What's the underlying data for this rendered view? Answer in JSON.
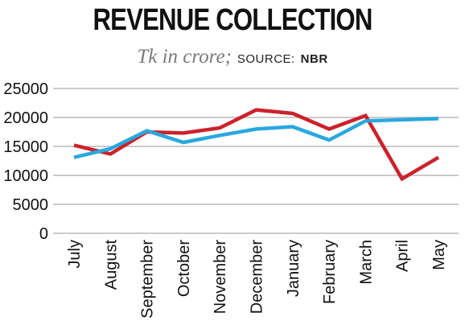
{
  "chart_data": {
    "type": "line",
    "title": "REVENUE COLLECTION",
    "subtitle": "Tk in crore;",
    "source_label": "SOURCE:",
    "source_name": "NBR",
    "categories": [
      "July",
      "August",
      "September",
      "October",
      "November",
      "December",
      "January",
      "February",
      "March",
      "April",
      "May"
    ],
    "yticks": [
      "0",
      "5000",
      "10000",
      "15000",
      "20000",
      "25000"
    ],
    "ylim": [
      0,
      25000
    ],
    "grid": true,
    "series": [
      {
        "color": "#cc2229",
        "values": [
          15200,
          13700,
          17500,
          17300,
          18200,
          21300,
          20700,
          18000,
          20300,
          9400,
          13100
        ]
      },
      {
        "color": "#29a8e0",
        "values": [
          13100,
          14600,
          17700,
          15700,
          16900,
          18000,
          18400,
          16100,
          19400,
          19600,
          19800
        ]
      }
    ]
  }
}
